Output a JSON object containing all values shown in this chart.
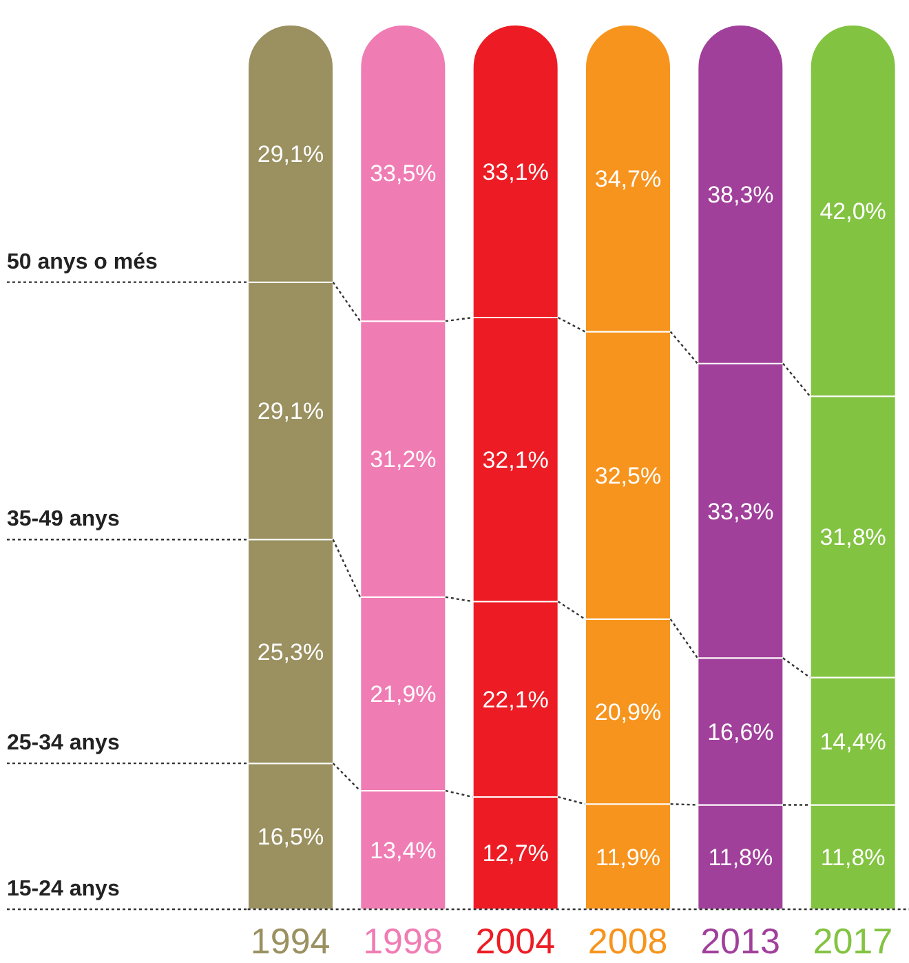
{
  "chart_data": {
    "type": "bar",
    "stacked": true,
    "categories": [
      "1994",
      "1998",
      "2004",
      "2008",
      "2013",
      "2017"
    ],
    "series": [
      {
        "name": "15-24 anys",
        "colors": [
          "#9a9060",
          "#f07cb4",
          "#ed1c24",
          "#f7941d",
          "#a0409a",
          "#82c341"
        ],
        "values": [
          16.5,
          13.4,
          12.7,
          11.9,
          11.8,
          11.8
        ],
        "value_labels": [
          "16,5%",
          "13,4%",
          "12,7%",
          "11,9%",
          "11,8%",
          "11,8%"
        ]
      },
      {
        "name": "25-34 anys",
        "colors": [
          "#9a9060",
          "#f07cb4",
          "#ed1c24",
          "#f7941d",
          "#a0409a",
          "#82c341"
        ],
        "values": [
          25.3,
          21.9,
          22.1,
          20.9,
          16.6,
          14.4
        ],
        "value_labels": [
          "25,3%",
          "21,9%",
          "22,1%",
          "20,9%",
          "16,6%",
          "14,4%"
        ]
      },
      {
        "name": "35-49 anys",
        "colors": [
          "#9a9060",
          "#f07cb4",
          "#ed1c24",
          "#f7941d",
          "#a0409a",
          "#82c341"
        ],
        "values": [
          29.1,
          31.2,
          32.1,
          32.5,
          33.3,
          31.8
        ],
        "value_labels": [
          "29,1%",
          "31,2%",
          "32,1%",
          "32,5%",
          "33,3%",
          "31,8%"
        ]
      },
      {
        "name": "50 anys o més",
        "colors": [
          "#9a9060",
          "#f07cb4",
          "#ed1c24",
          "#f7941d",
          "#a0409a",
          "#82c341"
        ],
        "values": [
          29.1,
          33.5,
          33.1,
          34.7,
          38.3,
          42.0
        ],
        "value_labels": [
          "29,1%",
          "33,5%",
          "33,1%",
          "34,7%",
          "38,3%",
          "42,0%"
        ]
      }
    ]
  }
}
